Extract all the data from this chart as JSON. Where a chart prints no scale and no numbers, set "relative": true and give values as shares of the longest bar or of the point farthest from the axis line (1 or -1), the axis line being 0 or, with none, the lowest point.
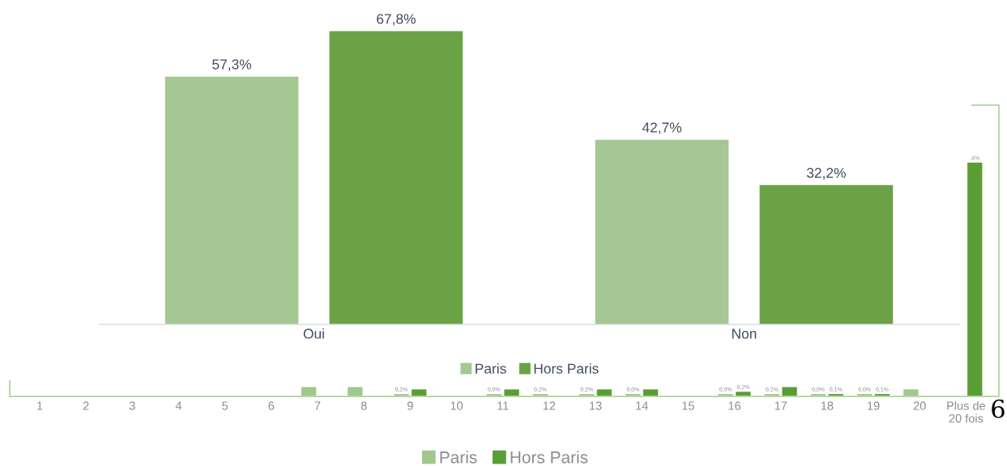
{
  "chart_data": [
    {
      "type": "bar",
      "categories": [
        "Oui",
        "Non"
      ],
      "series": [
        {
          "name": "Paris",
          "color": "#a5c793",
          "values": [
            57.3,
            42.7
          ],
          "value_labels": [
            "57,3%",
            "42,7%"
          ]
        },
        {
          "name": "Hors Paris",
          "color": "#6aa245",
          "values": [
            67.8,
            32.2
          ],
          "value_labels": [
            "67,8%",
            "32,2%"
          ]
        }
      ],
      "tick_labels": "x",
      "legend": "bottom"
    },
    {
      "type": "bar",
      "relative": true,
      "categories": [
        "1",
        "2",
        "3",
        "4",
        "5",
        "6",
        "7",
        "8",
        "9",
        "10",
        "11",
        "12",
        "13",
        "14",
        "15",
        "16",
        "17",
        "18",
        "19",
        "20",
        "Plus de\n20 fois"
      ],
      "series": [
        {
          "name": "Paris",
          "color": "#a0c88c",
          "values": [
            null,
            null,
            null,
            null,
            null,
            null,
            0.04,
            0.04,
            0.01,
            null,
            0.01,
            0.01,
            0.01,
            0.01,
            null,
            0.01,
            0.01,
            0.01,
            0.01,
            0.03,
            null
          ]
        },
        {
          "name": "Hors Paris",
          "color": "#5b9d35",
          "values": [
            null,
            null,
            null,
            null,
            null,
            null,
            null,
            null,
            0.03,
            null,
            0.03,
            null,
            0.03,
            0.03,
            null,
            0.02,
            0.04,
            0.01,
            0.01,
            null,
            1
          ]
        }
      ],
      "legend": "bottom",
      "annotations": [
        {
          "text": "0,2%",
          "x": "9",
          "y": 0.01
        },
        {
          "text": "0,0%",
          "x": "11",
          "y": 0.01
        },
        {
          "text": "0,2%",
          "x": "12",
          "y": 0.01
        },
        {
          "text": "0,2%",
          "x": "13",
          "y": 0.01
        },
        {
          "text": "0,0%",
          "x": "14",
          "y": 0.01
        },
        {
          "text": "0,0%",
          "x": "16",
          "y": 0.01
        },
        {
          "text": "0,2%",
          "x": "16",
          "y": 0.02
        },
        {
          "text": "0,2%",
          "x": "17",
          "y": 0.01
        },
        {
          "text": "0,0%",
          "x": "18",
          "y": 0.01
        },
        {
          "text": "0,1%",
          "x": "18",
          "y": 0.01
        },
        {
          "text": "0,0%",
          "x": "19",
          "y": 0.01
        },
        {
          "text": "0,1%",
          "x": "19",
          "y": 0.01
        },
        {
          "text": ",4%",
          "x": "Plus de\n20 fois",
          "y": 1
        },
        "6"
      ]
    }
  ]
}
